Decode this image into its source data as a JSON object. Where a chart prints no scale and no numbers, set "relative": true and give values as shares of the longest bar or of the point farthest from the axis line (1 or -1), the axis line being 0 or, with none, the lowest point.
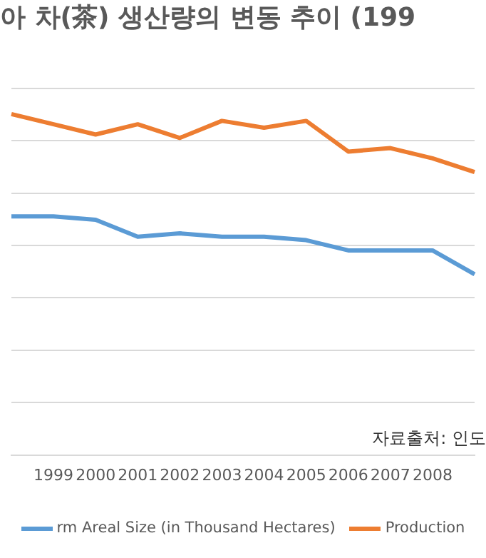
{
  "chart_data": {
    "type": "line",
    "title": "아 차(茶) 생산량의 변동 추이 (199",
    "categories": [
      null,
      "1999",
      "2000",
      "2001",
      "2002",
      "2003",
      "2004",
      "2005",
      "2006",
      "2007",
      "2008",
      null
    ],
    "series": [
      {
        "name": "rm Areal Size (in Thousand Hectares)",
        "color": "#5b9bd5",
        "values": [
          0.7,
          0.7,
          0.69,
          0.64,
          0.65,
          0.64,
          0.64,
          0.63,
          0.6,
          0.6,
          0.6,
          0.53
        ]
      },
      {
        "name": "Production",
        "color": "#ed7d31",
        "values": [
          1,
          0.97,
          0.94,
          0.97,
          0.93,
          0.98,
          0.96,
          0.98,
          0.89,
          0.9,
          0.87,
          0.83
        ]
      }
    ],
    "relative": true,
    "grid": "y",
    "legend": "bottom",
    "marker": "none",
    "line_style": "solid",
    "annotations": [
      "자료출처: 인도"
    ]
  }
}
